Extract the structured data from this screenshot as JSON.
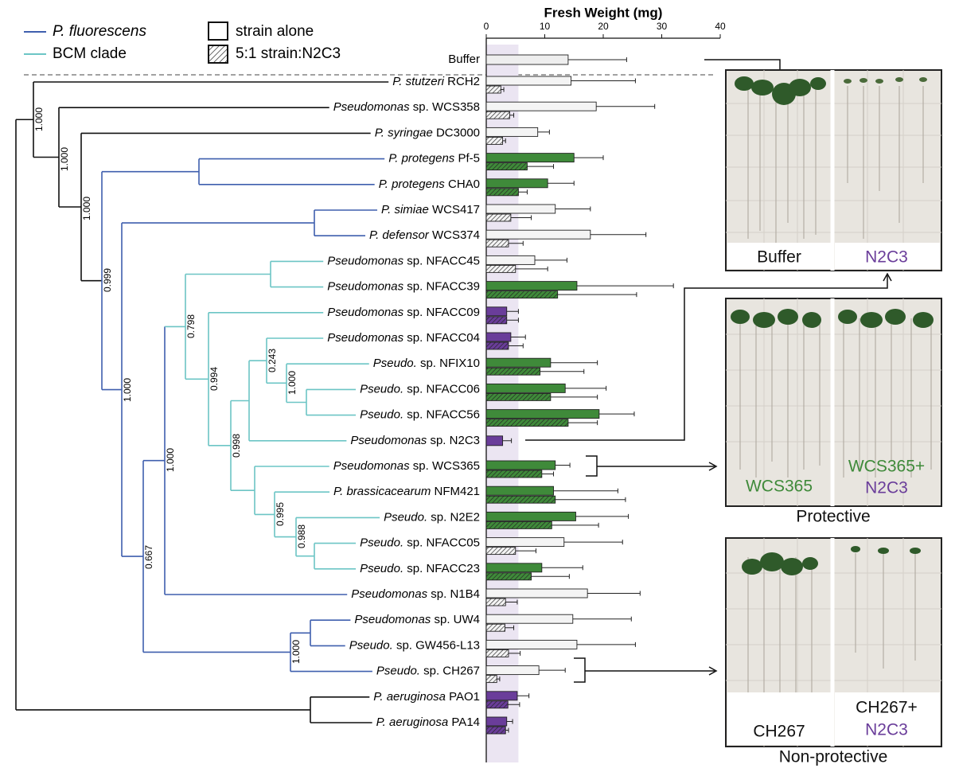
{
  "chart_data": {
    "type": "bar",
    "orientation": "horizontal",
    "title": "Fresh Weight (mg)",
    "categories": [
      "Buffer",
      "P. stutzeri RCH2",
      "Pseudomonas sp. WCS358",
      "P. syringae DC3000",
      "P. protegens Pf-5",
      "P. protegens CHA0",
      "P. simiae WCS417",
      "P. defensor WCS374",
      "Pseudomonas sp. NFACC45",
      "Pseudomonas sp. NFACC39",
      "Pseudomonas sp. NFACC09",
      "Pseudomonas sp. NFACC04",
      "Pseudo. sp. NFIX10",
      "Pseudo. sp. NFACC06",
      "Pseudo. sp. NFACC56",
      "Pseudomonas sp. N2C3",
      "Pseudomonas sp. WCS365",
      "P. brassicacearum NFM421",
      "Pseudo. sp. N2E2",
      "Pseudo. sp. NFACC05",
      "Pseudo. sp. NFACC23",
      "Pseudomonas sp. N1B4",
      "Pseudomonas sp. UW4",
      "Pseudo. sp. GW456-L13",
      "Pseudo. sp. CH267",
      "P. aeruginosa PAO1",
      "P. aeruginosa PA14"
    ],
    "series": [
      {
        "name": "strain alone",
        "hatch": false,
        "values": [
          14,
          14.5,
          18.8,
          8.8,
          15,
          10.5,
          11.8,
          17.8,
          8.3,
          15.5,
          3.5,
          4.2,
          11,
          13.5,
          19.3,
          2.8,
          11.8,
          11.5,
          15.3,
          13.3,
          9.5,
          17.3,
          14.8,
          15.5,
          9,
          5.3,
          3.5
        ],
        "errors": [
          10,
          11,
          10,
          2,
          5,
          4.5,
          6,
          9.5,
          5.5,
          16.5,
          2,
          2.5,
          8,
          7,
          6,
          1.5,
          2.5,
          11,
          9,
          10,
          7,
          9,
          10,
          10,
          4.5,
          2,
          1
        ]
      },
      {
        "name": "5:1 strain:N2C3",
        "hatch": true,
        "values": [
          null,
          2.5,
          4,
          2.8,
          7,
          5.5,
          4.2,
          3.8,
          5,
          12.2,
          3.5,
          3.8,
          9.2,
          11,
          14,
          null,
          9.5,
          11.8,
          11.2,
          5,
          7.7,
          3.3,
          3.2,
          3.8,
          1.8,
          3.7,
          3.3
        ],
        "errors": [
          null,
          0.5,
          0.7,
          0.5,
          4.5,
          1.5,
          3.5,
          2.5,
          5.5,
          13.5,
          2,
          2.5,
          7.5,
          8,
          5,
          null,
          2,
          12,
          8,
          3.5,
          6.5,
          2,
          1.5,
          2,
          0.5,
          2,
          0.5
        ]
      }
    ],
    "bar_colors": [
      "#eeeeee",
      "#f4f4f4",
      "#f4f4f4",
      "#f4f4f4",
      "#3f8a3a",
      "#3f8a3a",
      "#f4f4f4",
      "#f4f4f4",
      "#f4f4f4",
      "#3f8a3a",
      "#6a3d9a",
      "#6a3d9a",
      "#3f8a3a",
      "#3f8a3a",
      "#3f8a3a",
      "#6a3d9a",
      "#3f8a3a",
      "#3f8a3a",
      "#3f8a3a",
      "#f4f4f4",
      "#3f8a3a",
      "#f4f4f4",
      "#f4f4f4",
      "#f4f4f4",
      "#f4f4f4",
      "#6a3d9a",
      "#6a3d9a"
    ],
    "xlim": [
      0,
      40
    ],
    "xticks": [
      0,
      10,
      20,
      30,
      40
    ],
    "shaded_range": [
      0,
      5.5
    ]
  },
  "tree": {
    "legend": [
      {
        "name": "P. fluorescens",
        "color": "#3f5fae"
      },
      {
        "name": "BCM clade",
        "color": "#6cc5c5"
      }
    ],
    "support": [
      "1.000",
      "1.000",
      "1.000",
      "0.999",
      "1.000",
      "1.000",
      "0.667",
      "0.798",
      "0.994",
      "0.998",
      "0.243",
      "1.000",
      "0.995",
      "0.988",
      "1.000"
    ]
  },
  "panels": [
    {
      "left": "Buffer",
      "right": "N2C3"
    },
    {
      "left": "WCS365",
      "right_top": "WCS365+",
      "right": "N2C3",
      "caption": "Protective"
    },
    {
      "left": "CH267",
      "right_top": "CH267+",
      "right": "N2C3",
      "caption": "Non-protective"
    }
  ]
}
